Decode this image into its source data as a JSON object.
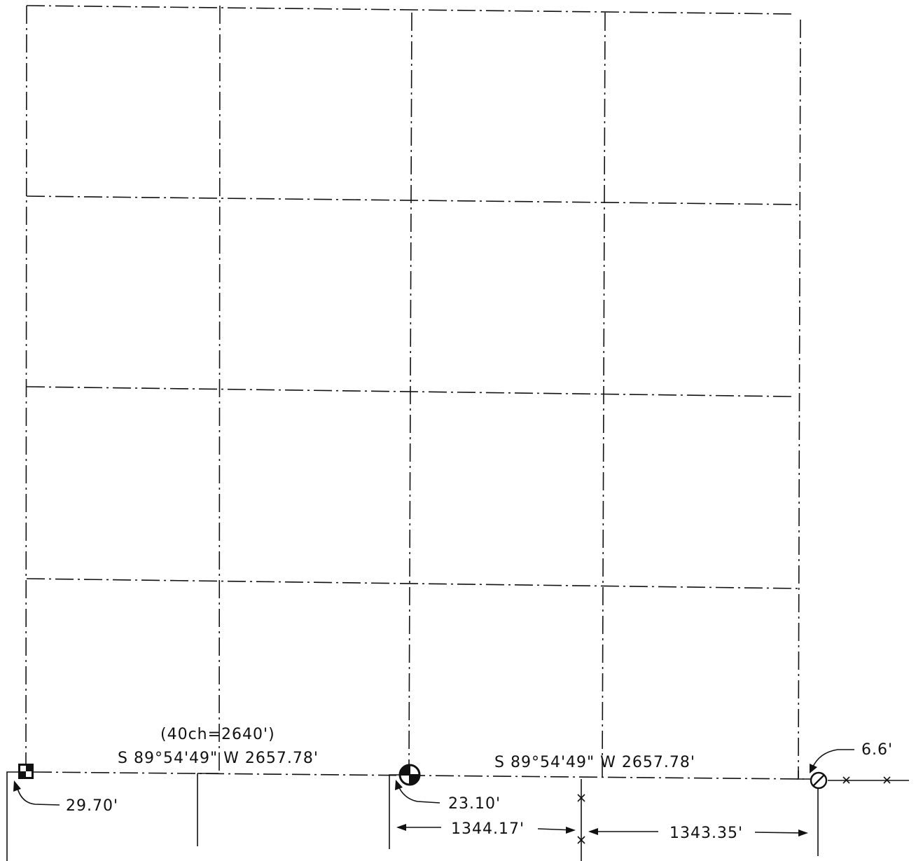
{
  "plat": {
    "labels": {
      "chain_note": "(40ch=2640')",
      "bearing_west": "S 89°54'49\"  W 2657.78'",
      "bearing_east": "S 89°54'49\"  W 2657.78'",
      "tie_west": "29.70'",
      "tie_center": "23.10'",
      "tie_east": "6.6'",
      "dim_left": "1344.17'",
      "dim_right": "1343.35'"
    },
    "monuments": [
      {
        "name": "checkered-square-monument-icon"
      },
      {
        "name": "quartered-circle-monument-icon"
      },
      {
        "name": "slashed-circle-monument-icon"
      }
    ]
  }
}
